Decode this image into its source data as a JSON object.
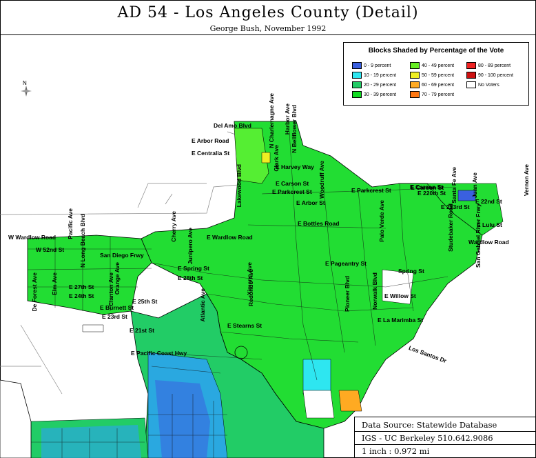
{
  "title": "AD 54 - Los Angeles County (Detail)",
  "subtitle": "George Bush, November 1992",
  "north_label": "N",
  "legend": {
    "title": "Blocks Shaded by Percentage of the Vote",
    "items": [
      {
        "label": "0 - 9 percent",
        "color": "#3a60e0"
      },
      {
        "label": "10 - 19 percent",
        "color": "#2ee6f0"
      },
      {
        "label": "20 - 29 percent",
        "color": "#22cc66"
      },
      {
        "label": "30 - 39 percent",
        "color": "#11dd22"
      },
      {
        "label": "40 - 49 percent",
        "color": "#66ee22"
      },
      {
        "label": "50 - 59 percent",
        "color": "#eeee22"
      },
      {
        "label": "60 - 69 percent",
        "color": "#ffaa22"
      },
      {
        "label": "70 - 79 percent",
        "color": "#ff7711"
      },
      {
        "label": "80 - 89 percent",
        "color": "#ee2222"
      },
      {
        "label": "90 - 100 percent",
        "color": "#cc1111"
      },
      {
        "label": "No Voters",
        "color": "#ffffff"
      }
    ]
  },
  "colors": {
    "fill_main": "#22dd33",
    "fill_light": "#55ee33",
    "fill_low": "#2aa8e0",
    "fill_cyan": "#2ee6f0",
    "road": "#777777",
    "outline": "#000000"
  },
  "street_labels": [
    "Del Amo Blvd",
    "E Arbor Road",
    "E Centralia St",
    "E Harvey Way",
    "E Carson St",
    "E Parkcrest St",
    "E Parkcrest St",
    "E Carson St",
    "E Arbor St",
    "E Bottles Road",
    "E Wardlow Road",
    "W Wardlow Road",
    "W 52nd St",
    "San Diego Frwy",
    "E Spring St",
    "E Pageantry St",
    "E 28th St",
    "E Burnett St",
    "E 25th St",
    "E 23rd St",
    "E 21st St",
    "E Pacific Coast Hwy",
    "E Stearns St",
    "Los Santos Dr",
    "E La Marimba St",
    "E Willow St",
    "Spring St",
    "E Carson St",
    "E 22nd St",
    "E 220th St",
    "E 223rd St",
    "E Lulu St",
    "Wardlow Road",
    "E 27th St",
    "E 24th St",
    "N Bellflower Blvd",
    "N Charlemagne Ave",
    "Harbor Ave",
    "Clark Ave",
    "Woodruff Ave",
    "Lakewood Blvd",
    "Cherry Ave",
    "Junipero Ave",
    "Orange Ave",
    "Atlantic Ave",
    "Pacific Ave",
    "N Long Beach Blvd",
    "Redondo Ave",
    "Palo Verde Ave",
    "Studebaker Road",
    "San Gabriel River Frwy",
    "Vernon Ave",
    "Juan Ave",
    "Santa Fe Ave",
    "De Forest Ave",
    "Elm Ave",
    "Clanton Ave",
    "Ximeno Ave",
    "Norwalk Blvd",
    "Pioneer Blvd"
  ],
  "info": {
    "source": "Data Source: Statewide Database",
    "org": "IGS - UC Berkeley 510.642.9086",
    "scale": "1 inch : 0.972 mi"
  }
}
